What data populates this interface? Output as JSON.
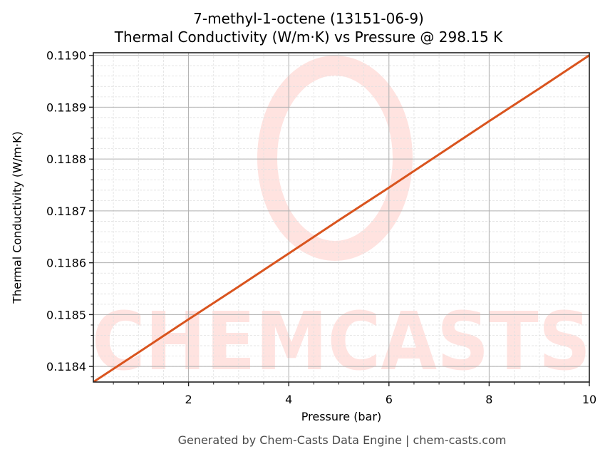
{
  "chart_data": {
    "type": "line",
    "title": "7-methyl-1-octene (13151-06-9)",
    "subtitle": "Thermal Conductivity (W/m·K) vs Pressure @ 298.15 K",
    "xlabel": "Pressure (bar)",
    "ylabel": "Thermal Conductivity (W/m·K)",
    "xlim": [
      0.1,
      10
    ],
    "ylim": [
      0.11837,
      0.119005
    ],
    "xticks": [
      2,
      4,
      6,
      8,
      10
    ],
    "xtick_labels": [
      "2",
      "4",
      "6",
      "8",
      "10"
    ],
    "yticks": [
      0.1184,
      0.1185,
      0.1186,
      0.1187,
      0.1188,
      0.1189,
      0.119
    ],
    "ytick_labels": [
      "0.1184",
      "0.1185",
      "0.1186",
      "0.1187",
      "0.1188",
      "0.1189",
      "0.1190"
    ],
    "x_minor_step": 0.5,
    "y_minor_step": 2e-05,
    "grid": true,
    "legend": null,
    "series": [
      {
        "name": "Thermal Conductivity",
        "color": "#d9541e",
        "x": [
          0.1,
          1,
          2,
          3,
          4,
          5,
          6,
          7,
          8,
          9,
          10
        ],
        "values": [
          0.11837,
          0.118427,
          0.118491,
          0.118554,
          0.118618,
          0.118682,
          0.118745,
          0.118809,
          0.118873,
          0.118936,
          0.119
        ]
      }
    ],
    "watermark": "CHEMCASTS"
  },
  "footer": "Generated by Chem-Casts Data Engine | chem-casts.com",
  "colors": {
    "line": "#d9541e",
    "watermark": "#ffe3e0",
    "major_grid": "#b0b0b0",
    "minor_grid": "#e0e0e0",
    "axis": "#222222",
    "footer_text": "#4a4a4a"
  }
}
